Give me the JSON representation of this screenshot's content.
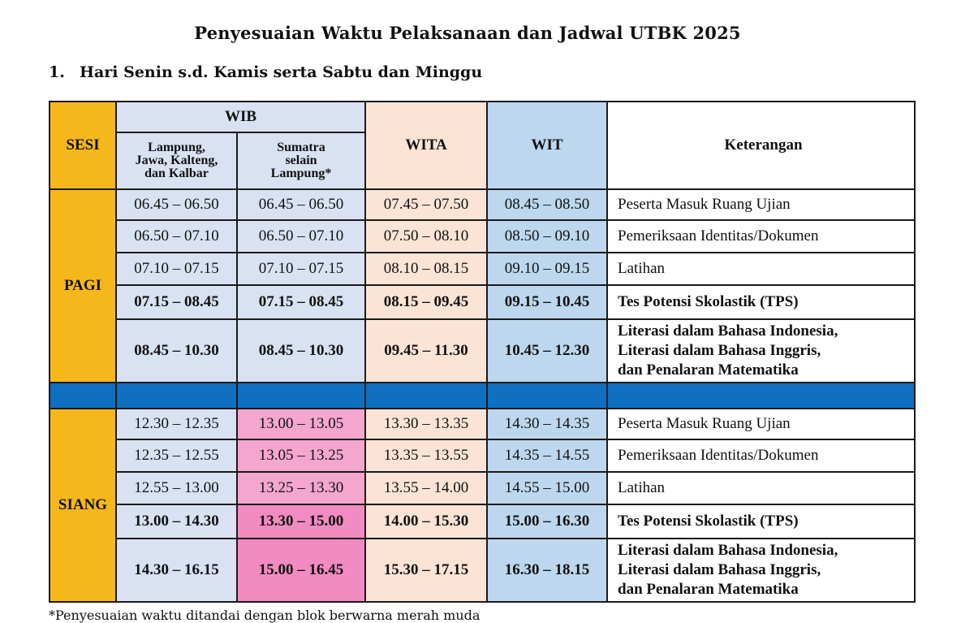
{
  "title": "Penyesuaian Waktu Pelaksanaan dan Jadwal UTBK 2025",
  "section": {
    "number": "1.",
    "label": "Hari Senin s.d. Kamis serta Sabtu dan Minggu"
  },
  "headers": {
    "sesi": "SESI",
    "wib": "WIB",
    "wib_sub1": [
      "Lampung,",
      "Jawa, Kalteng,",
      "dan Kalbar"
    ],
    "wib_sub2": [
      "Sumatra",
      "selain",
      "Lampung*"
    ],
    "wita": "WITA",
    "wit": "WIT",
    "keterangan": "Keterangan"
  },
  "sessions": [
    {
      "name": "PAGI",
      "rows": [
        {
          "wib1": "06.45 – 06.50",
          "wib2": "06.45 – 06.50",
          "wita": "07.45 – 07.50",
          "wit": "08.45 – 08.50",
          "ket": [
            "Peserta Masuk Ruang Ujian"
          ],
          "bold": false
        },
        {
          "wib1": "06.50 – 07.10",
          "wib2": "06.50 – 07.10",
          "wita": "07.50 – 08.10",
          "wit": "08.50 – 09.10",
          "ket": [
            "Pemeriksaan Identitas/Dokumen"
          ],
          "bold": false
        },
        {
          "wib1": "07.10 – 07.15",
          "wib2": "07.10 – 07.15",
          "wita": "08.10 – 08.15",
          "wit": "09.10 – 09.15",
          "ket": [
            "Latihan"
          ],
          "bold": false
        },
        {
          "wib1": "07.15 – 08.45",
          "wib2": "07.15 – 08.45",
          "wita": "08.15 – 09.45",
          "wit": "09.15 – 10.45",
          "ket": [
            "Tes Potensi Skolastik (TPS)"
          ],
          "bold": true
        },
        {
          "wib1": "08.45 – 10.30",
          "wib2": "08.45 – 10.30",
          "wita": "09.45 – 11.30",
          "wit": "10.45 – 12.30",
          "ket": [
            "Literasi dalam Bahasa Indonesia,",
            "Literasi dalam Bahasa Inggris,",
            "dan Penalaran Matematika"
          ],
          "bold": true
        }
      ]
    },
    {
      "name": "SIANG",
      "rows": [
        {
          "wib1": "12.30 – 12.35",
          "wib2": "13.00 – 13.05",
          "wita": "13.30 – 13.35",
          "wit": "14.30 – 14.35",
          "ket": [
            "Peserta Masuk Ruang Ujian"
          ],
          "bold": false
        },
        {
          "wib1": "12.35 – 12.55",
          "wib2": "13.05 – 13.25",
          "wita": "13.35 – 13.55",
          "wit": "14.35 – 14.55",
          "ket": [
            "Pemeriksaan Identitas/Dokumen"
          ],
          "bold": false
        },
        {
          "wib1": "12.55 – 13.00",
          "wib2": "13.25 – 13.30",
          "wita": "13.55 – 14.00",
          "wit": "14.55 – 15.00",
          "ket": [
            "Latihan"
          ],
          "bold": false
        },
        {
          "wib1": "13.00 – 14.30",
          "wib2": "13.30 – 15.00",
          "wita": "14.00 – 15.30",
          "wit": "15.00 – 16.30",
          "ket": [
            "Tes Potensi Skolastik (TPS)"
          ],
          "bold": true
        },
        {
          "wib1": "14.30 – 16.15",
          "wib2": "15.00 – 16.45",
          "wita": "15.30 – 17.15",
          "wit": "16.30 – 18.15",
          "ket": [
            "Literasi dalam Bahasa Indonesia,",
            "Literasi dalam Bahasa Inggris,",
            "dan Penalaran Matematika"
          ],
          "bold": true
        }
      ]
    }
  ],
  "footnote": "*Penyesuaian waktu ditandai dengan blok berwarna merah muda",
  "colors": {
    "sesi": "#f6b71b",
    "wib": "#d9e2f3",
    "wita": "#fbe4d5",
    "wit": "#bdd7ee",
    "adjusted_pink": "#f4a6cf",
    "separator": "#0f6fc0"
  }
}
